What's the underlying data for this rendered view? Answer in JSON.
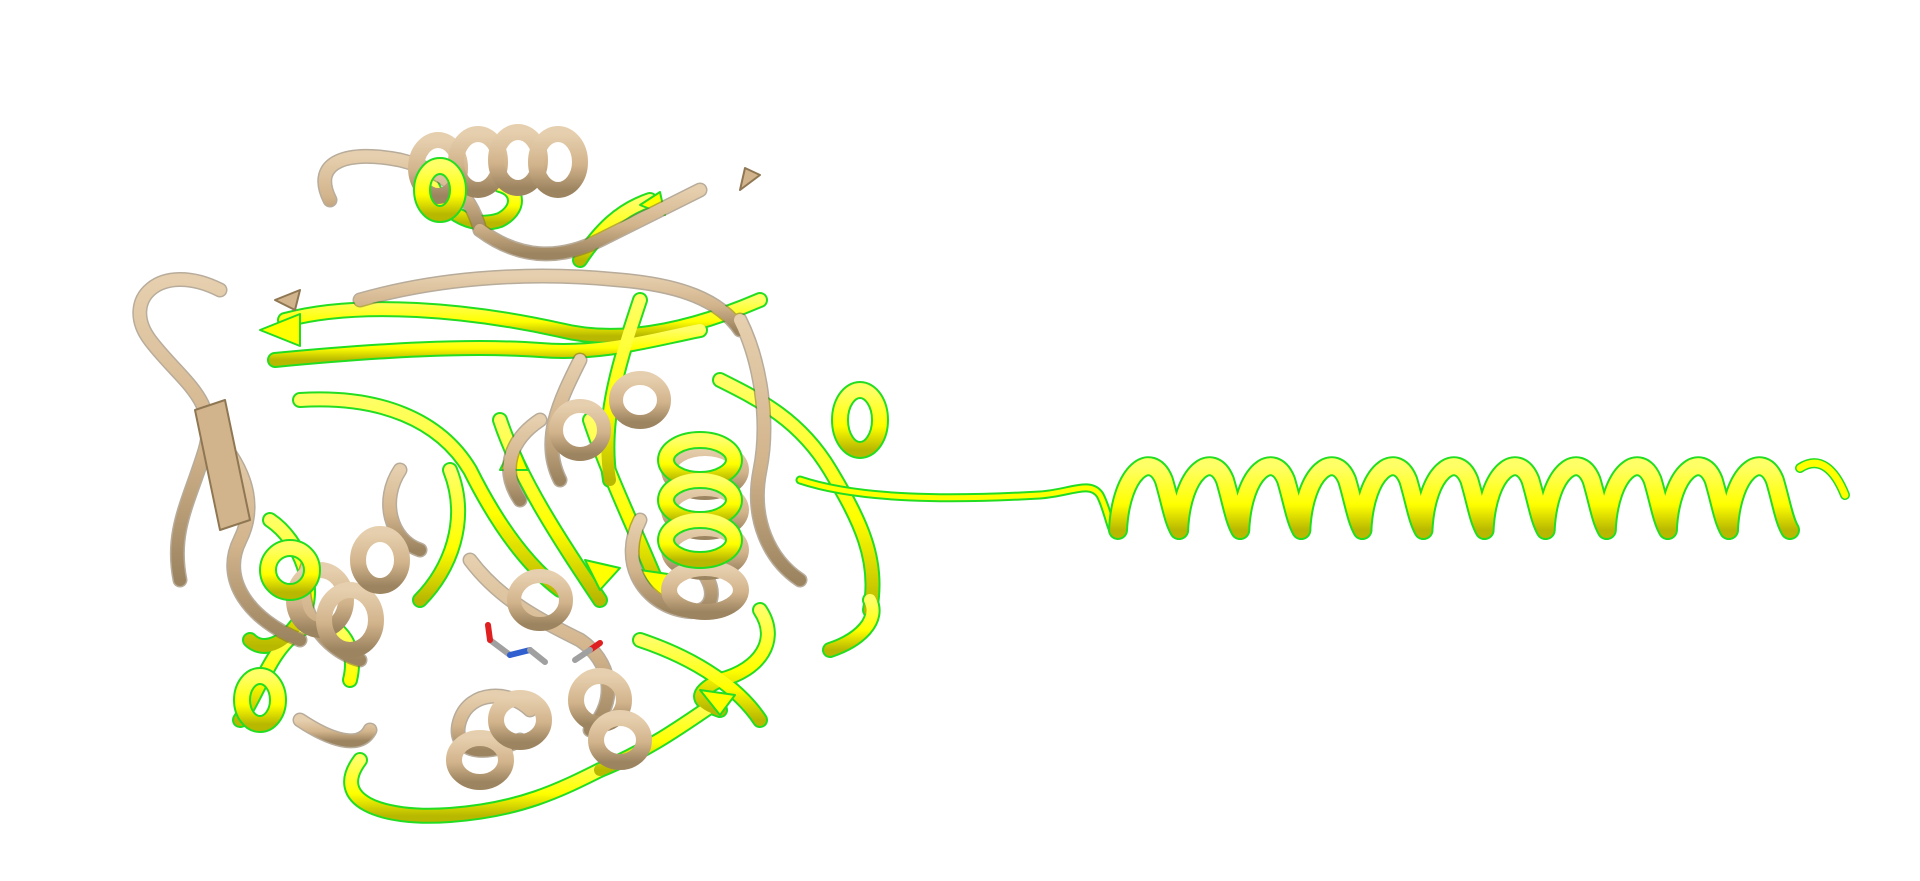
{
  "scene": {
    "background": "#ffffff",
    "structures": [
      {
        "name": "tan-structure",
        "color": "#d2b48c",
        "shade": "#a08863"
      },
      {
        "name": "yellow-structure",
        "color": "#ffff00",
        "outline": "#22dd22",
        "shade": "#c8c800"
      }
    ],
    "ligand_colors": {
      "nitrogen": "#3060d0",
      "oxygen": "#e02020",
      "carbon": "#a0a0a0"
    }
  }
}
